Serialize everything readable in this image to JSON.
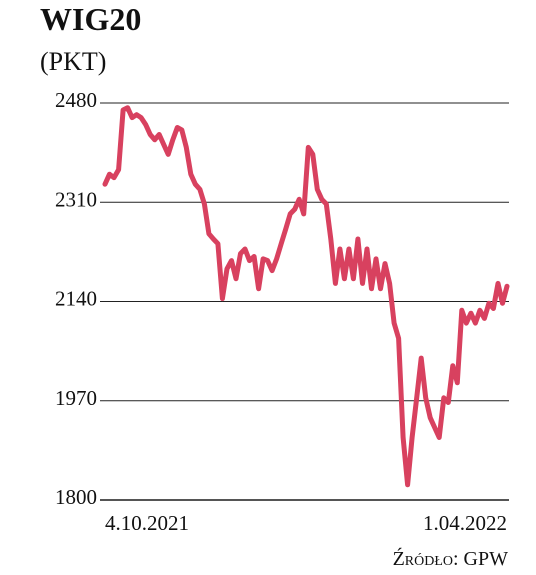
{
  "chart_data": {
    "type": "line",
    "title": "WIG20",
    "subtitle": "(PKT)",
    "source": "Źródło: GPW",
    "categories": [
      "4.10.2021",
      null,
      null,
      null,
      null,
      null,
      null,
      null,
      null,
      null,
      null,
      null,
      null,
      null,
      null,
      null,
      null,
      null,
      null,
      null,
      null,
      null,
      null,
      null,
      null,
      null,
      null,
      null,
      null,
      null,
      null,
      null,
      null,
      null,
      null,
      null,
      null,
      null,
      null,
      null,
      null,
      null,
      null,
      null,
      null,
      null,
      null,
      null,
      null,
      null,
      null,
      null,
      null,
      null,
      null,
      null,
      null,
      null,
      null,
      null,
      null,
      null,
      null,
      null,
      null,
      null,
      null,
      null,
      null,
      null,
      null,
      null,
      null,
      null,
      null,
      null,
      null,
      null,
      null,
      null,
      null,
      null,
      null,
      null,
      null,
      null,
      null,
      null,
      null,
      "1.04.2022"
    ],
    "values": [
      2341,
      2358,
      2352,
      2366,
      2468,
      2472,
      2455,
      2460,
      2455,
      2443,
      2426,
      2417,
      2426,
      2409,
      2392,
      2417,
      2438,
      2434,
      2404,
      2358,
      2341,
      2332,
      2307,
      2256,
      2247,
      2239,
      2145,
      2196,
      2210,
      2179,
      2222,
      2230,
      2210,
      2217,
      2162,
      2213,
      2210,
      2193,
      2213,
      2239,
      2264,
      2290,
      2298,
      2315,
      2290,
      2404,
      2392,
      2332,
      2315,
      2307,
      2247,
      2171,
      2230,
      2179,
      2230,
      2179,
      2247,
      2171,
      2230,
      2162,
      2213,
      2162,
      2205,
      2171,
      2103,
      2077,
      1907,
      1826,
      1907,
      1975,
      2043,
      1975,
      1941,
      1924,
      1907,
      1975,
      1967,
      2030,
      2001,
      2125,
      2103,
      2120,
      2103,
      2125,
      2111,
      2137,
      2128,
      2171,
      2137,
      2166
    ],
    "color": "#d8415f",
    "ylim": [
      1800,
      2480
    ],
    "yticks": [
      1800,
      1970,
      2140,
      2310,
      2480
    ],
    "grid": true
  }
}
